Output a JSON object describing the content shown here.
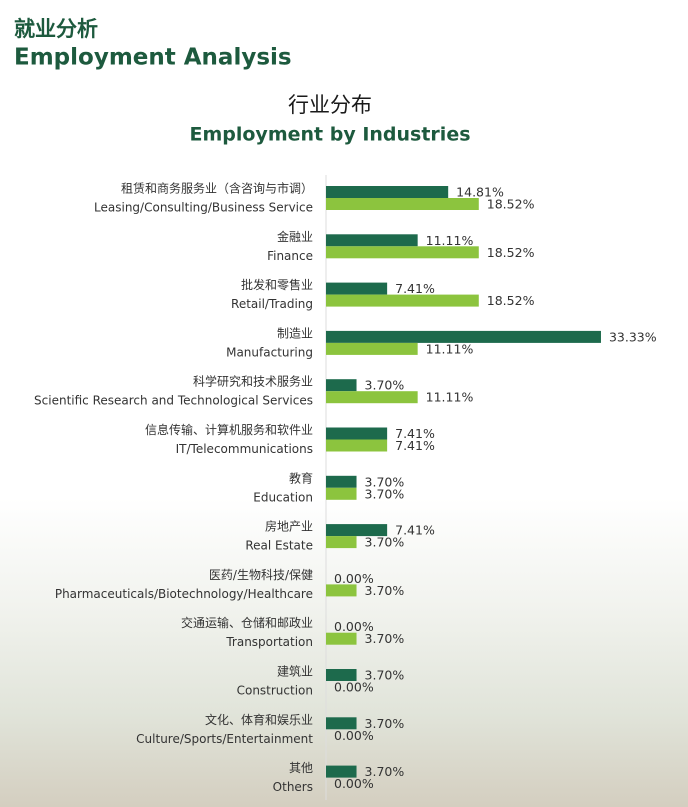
{
  "header": {
    "title_zh": "就业分析",
    "title_en": "Employment Analysis"
  },
  "chart_data": {
    "type": "bar",
    "orientation": "horizontal",
    "title": "行业分布",
    "subtitle": "Employment by Industries",
    "categories_zh": [
      "租赁和商务服务业（含咨询与市调）",
      "金融业",
      "批发和零售业",
      "制造业",
      "科学研究和技术服务业",
      "信息传输、计算机服务和软件业",
      "教育",
      "房地产业",
      "医药/生物科技/保健",
      "交通运输、仓储和邮政业",
      "建筑业",
      "文化、体育和娱乐业",
      "其他"
    ],
    "categories": [
      "Leasing/Consulting/Business Service",
      "Finance",
      "Retail/Trading",
      "Manufacturing",
      "Scientific Research and Technological Services",
      "IT/Telecommunications",
      "Education",
      "Real Estate",
      "Pharmaceuticals/Biotechnology/Healthcare",
      "Transportation",
      "Construction",
      "Culture/Sports/Entertainment",
      "Others"
    ],
    "series": [
      {
        "color": "#1d6a4c",
        "values": [
          14.81,
          11.11,
          7.41,
          33.33,
          3.7,
          7.41,
          3.7,
          7.41,
          0,
          0,
          3.7,
          3.7,
          3.7
        ],
        "value_labels": [
          "14.81%",
          "11.11%",
          "7.41%",
          "33.33%",
          "3.70%",
          "7.41%",
          "3.70%",
          "7.41%",
          "0.00%",
          "0.00%",
          "3.70%",
          "3.70%",
          "3.70%"
        ]
      },
      {
        "color": "#8cc43e",
        "values": [
          18.52,
          18.52,
          18.52,
          11.11,
          11.11,
          7.41,
          3.7,
          3.7,
          3.7,
          3.7,
          0,
          0,
          0
        ],
        "value_labels": [
          "18.52%",
          "18.52%",
          "18.52%",
          "11.11%",
          "11.11%",
          "7.41%",
          "3.70%",
          "3.70%",
          "3.70%",
          "3.70%",
          "0.00%",
          "0.00%",
          "0.00%"
        ]
      }
    ],
    "xlim": [
      0,
      40
    ]
  }
}
